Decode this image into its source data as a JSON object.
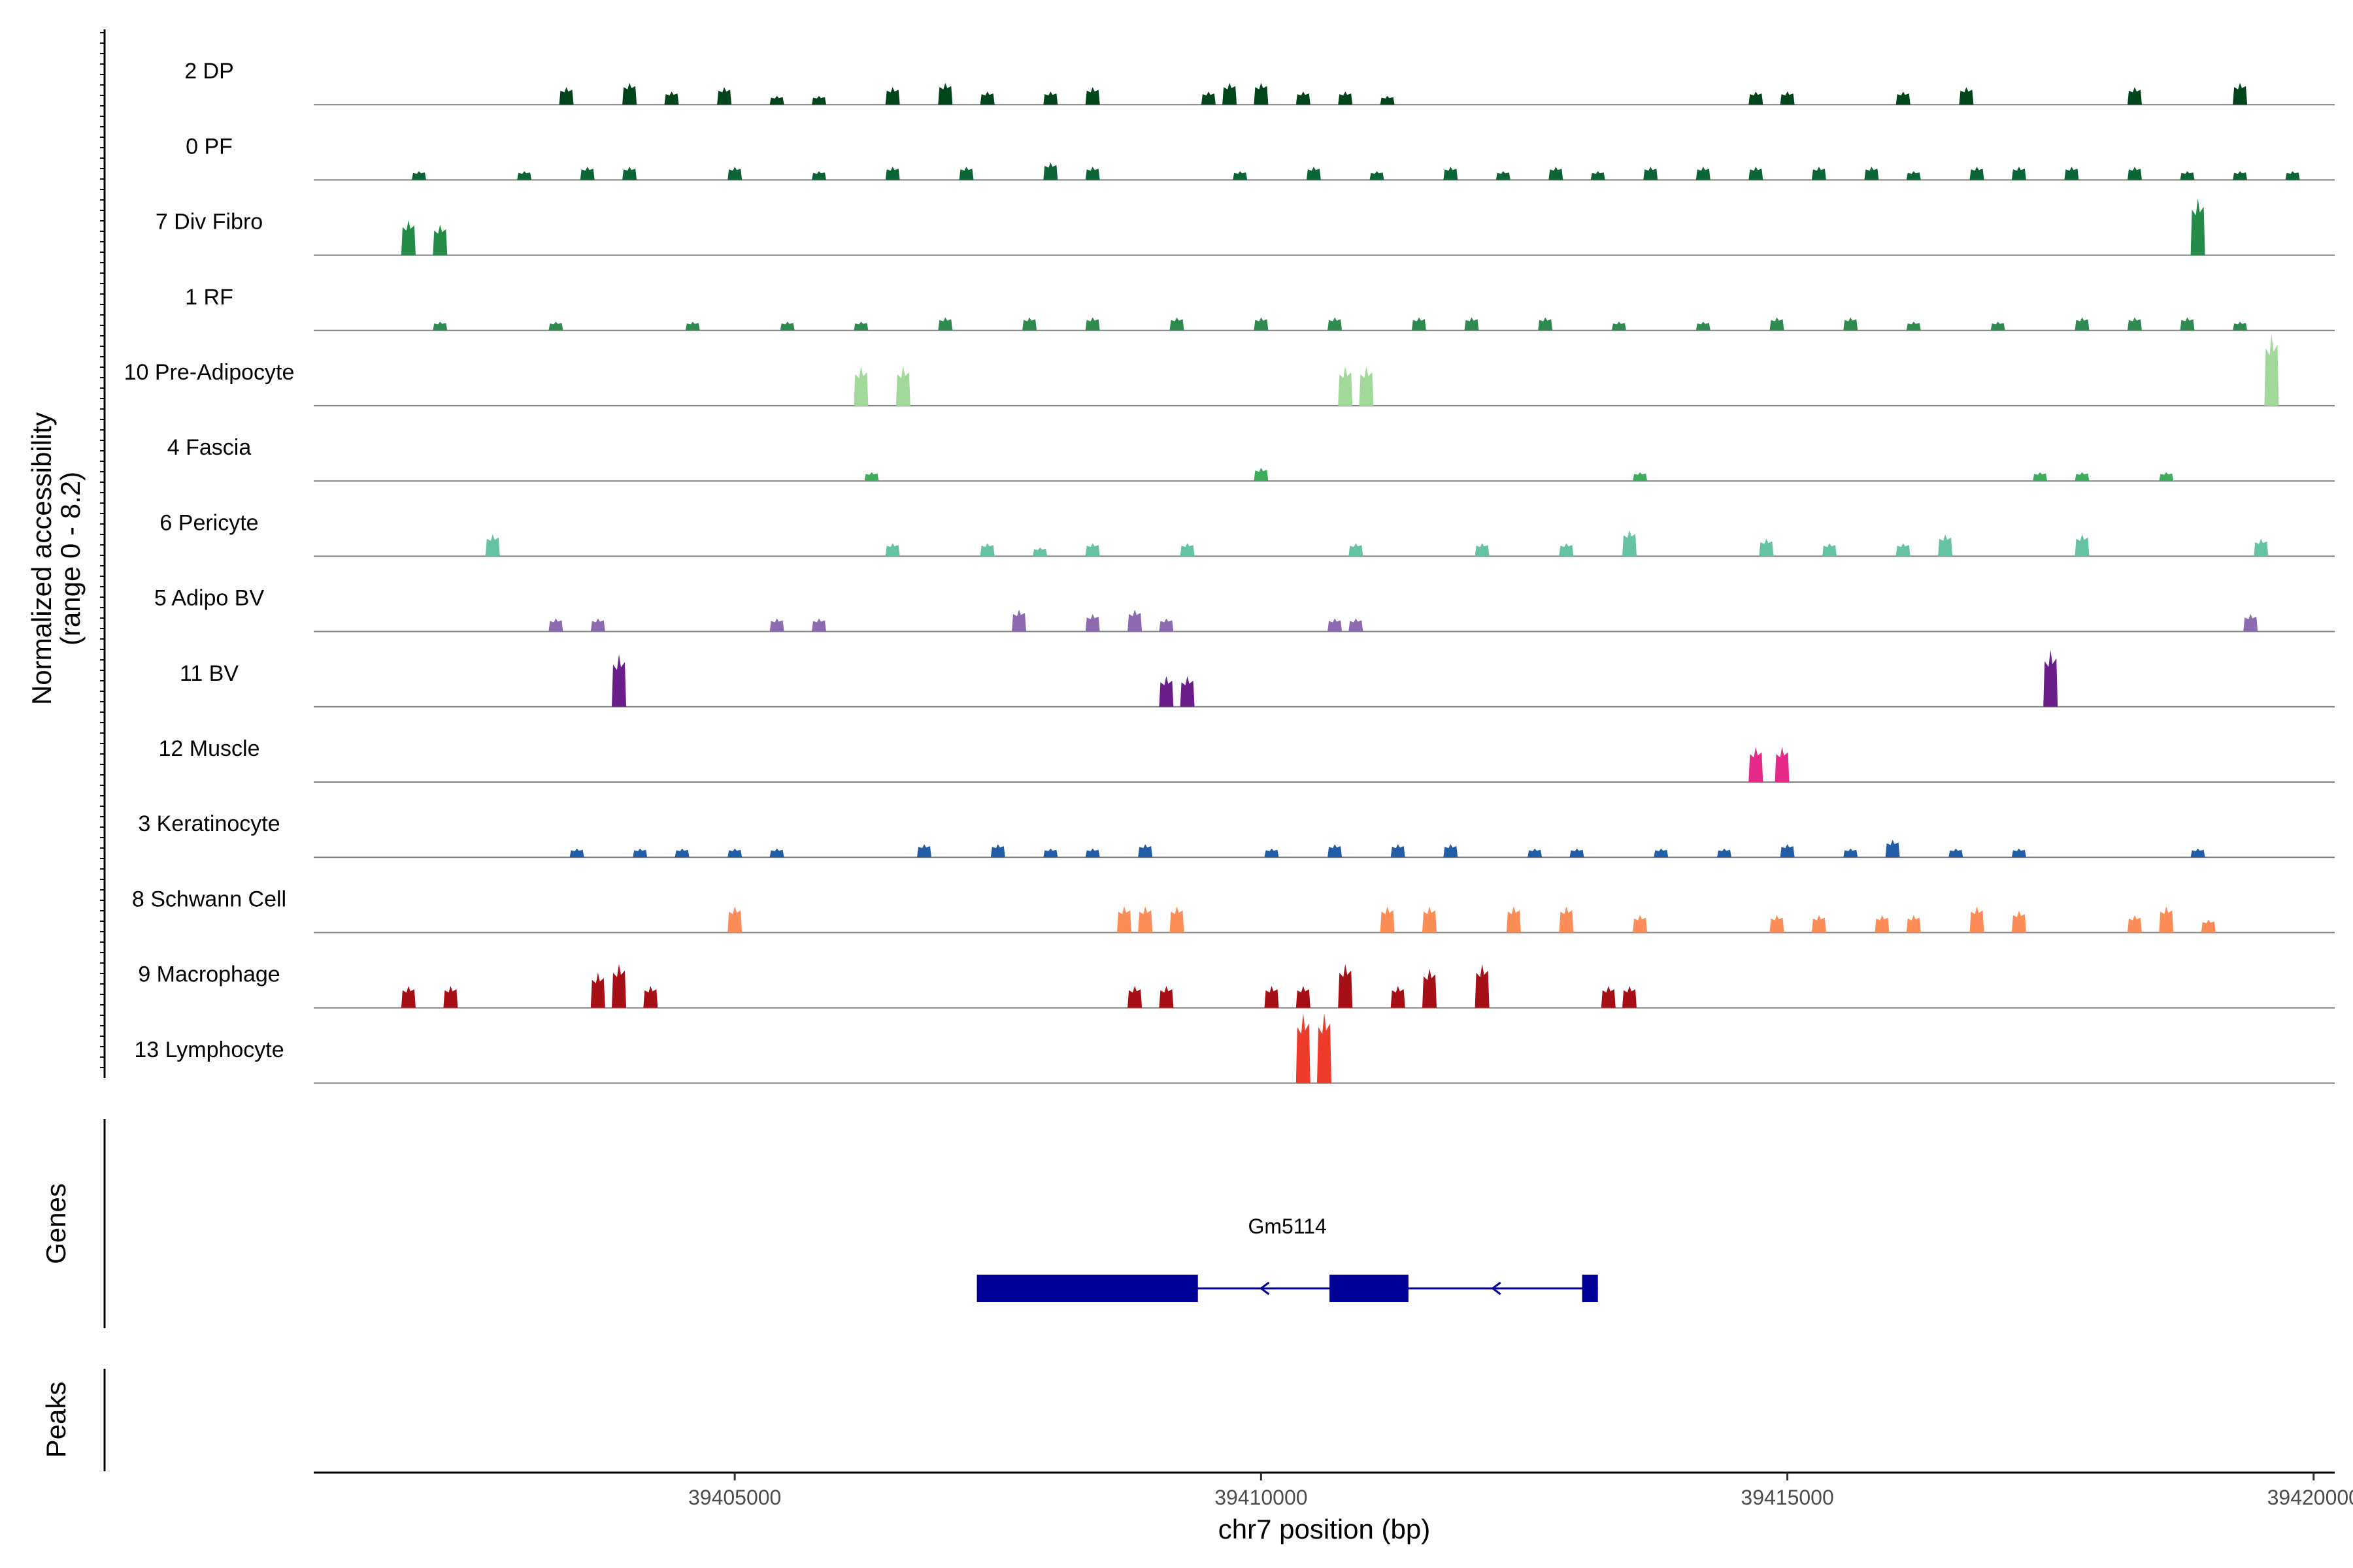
{
  "chart_data": {
    "type": "area",
    "title": "",
    "xlabel": "chr7 position (bp)",
    "ylabel": "Normalized accessibility",
    "ylabel_range": "(range 0 - 8.2)",
    "xlim": [
      39401000,
      39420200
    ],
    "x_ticks": [
      39405000,
      39410000,
      39415000,
      39420000
    ],
    "x_tick_labels": [
      "39405000",
      "39410000",
      "39415000",
      "39420000"
    ],
    "y_range": [
      0,
      8.2
    ],
    "panel_labels": {
      "genes": "Genes",
      "peaks": "Peaks"
    },
    "tracks": [
      {
        "name": "2 DP",
        "color": "#00441b",
        "peaks": [
          [
            39403400,
            2.0
          ],
          [
            39404000,
            2.5
          ],
          [
            39404400,
            1.5
          ],
          [
            39404900,
            2.0
          ],
          [
            39405400,
            1.0
          ],
          [
            39405800,
            1.0
          ],
          [
            39406500,
            2.0
          ],
          [
            39407000,
            2.5
          ],
          [
            39407400,
            1.5
          ],
          [
            39408000,
            1.5
          ],
          [
            39408400,
            2.0
          ],
          [
            39409500,
            1.5
          ],
          [
            39409700,
            2.5
          ],
          [
            39410000,
            2.5
          ],
          [
            39410400,
            1.5
          ],
          [
            39410800,
            1.5
          ],
          [
            39411200,
            1.0
          ],
          [
            39414700,
            1.5
          ],
          [
            39415000,
            1.5
          ],
          [
            39416100,
            1.5
          ],
          [
            39416700,
            2.0
          ],
          [
            39418300,
            2.0
          ],
          [
            39419300,
            2.5
          ]
        ]
      },
      {
        "name": "0 PF",
        "color": "#0b6435",
        "peaks": [
          [
            39402000,
            1.0
          ],
          [
            39403000,
            1.0
          ],
          [
            39403600,
            1.5
          ],
          [
            39404000,
            1.5
          ],
          [
            39405000,
            1.5
          ],
          [
            39405800,
            1.0
          ],
          [
            39406500,
            1.5
          ],
          [
            39407200,
            1.5
          ],
          [
            39408000,
            2.0
          ],
          [
            39408400,
            1.5
          ],
          [
            39409800,
            1.0
          ],
          [
            39410500,
            1.5
          ],
          [
            39411100,
            1.0
          ],
          [
            39411800,
            1.5
          ],
          [
            39412300,
            1.0
          ],
          [
            39412800,
            1.5
          ],
          [
            39413200,
            1.0
          ],
          [
            39413700,
            1.5
          ],
          [
            39414200,
            1.5
          ],
          [
            39414700,
            1.5
          ],
          [
            39415300,
            1.5
          ],
          [
            39415800,
            1.5
          ],
          [
            39416200,
            1.0
          ],
          [
            39416800,
            1.5
          ],
          [
            39417200,
            1.5
          ],
          [
            39417700,
            1.5
          ],
          [
            39418300,
            1.5
          ],
          [
            39418800,
            1.0
          ],
          [
            39419300,
            1.0
          ],
          [
            39419800,
            1.0
          ]
        ]
      },
      {
        "name": "7 Div Fibro",
        "color": "#238b45",
        "peaks": [
          [
            39401900,
            4.0
          ],
          [
            39402200,
            3.5
          ],
          [
            39418900,
            6.5
          ]
        ]
      },
      {
        "name": "1 RF",
        "color": "#2f8a4f",
        "peaks": [
          [
            39402200,
            1.0
          ],
          [
            39403300,
            1.0
          ],
          [
            39404600,
            1.0
          ],
          [
            39405500,
            1.0
          ],
          [
            39406200,
            1.0
          ],
          [
            39407000,
            1.5
          ],
          [
            39407800,
            1.5
          ],
          [
            39408400,
            1.5
          ],
          [
            39409200,
            1.5
          ],
          [
            39410000,
            1.5
          ],
          [
            39410700,
            1.5
          ],
          [
            39411500,
            1.5
          ],
          [
            39412000,
            1.5
          ],
          [
            39412700,
            1.5
          ],
          [
            39413400,
            1.0
          ],
          [
            39414200,
            1.0
          ],
          [
            39414900,
            1.5
          ],
          [
            39415600,
            1.5
          ],
          [
            39416200,
            1.0
          ],
          [
            39417000,
            1.0
          ],
          [
            39417800,
            1.5
          ],
          [
            39418300,
            1.5
          ],
          [
            39418800,
            1.5
          ],
          [
            39419300,
            1.0
          ]
        ]
      },
      {
        "name": "10 Pre-Adipocyte",
        "color": "#a1d99b",
        "peaks": [
          [
            39406200,
            4.5
          ],
          [
            39406600,
            4.5
          ],
          [
            39410800,
            4.5
          ],
          [
            39411000,
            4.5
          ],
          [
            39419600,
            8.2
          ]
        ]
      },
      {
        "name": "4 Fascia",
        "color": "#41ab5d",
        "peaks": [
          [
            39406300,
            1.0
          ],
          [
            39410000,
            1.5
          ],
          [
            39413600,
            1.0
          ],
          [
            39417400,
            1.0
          ],
          [
            39417800,
            1.0
          ],
          [
            39418600,
            1.0
          ]
        ]
      },
      {
        "name": "6 Pericyte",
        "color": "#66c2a4",
        "peaks": [
          [
            39402700,
            2.5
          ],
          [
            39406500,
            1.5
          ],
          [
            39407400,
            1.5
          ],
          [
            39407900,
            1.0
          ],
          [
            39408400,
            1.5
          ],
          [
            39409300,
            1.5
          ],
          [
            39410900,
            1.5
          ],
          [
            39412100,
            1.5
          ],
          [
            39412900,
            1.5
          ],
          [
            39413500,
            3.0
          ],
          [
            39414800,
            2.0
          ],
          [
            39415400,
            1.5
          ],
          [
            39416100,
            1.5
          ],
          [
            39416500,
            2.5
          ],
          [
            39417800,
            2.5
          ],
          [
            39419500,
            2.0
          ]
        ]
      },
      {
        "name": "5 Adipo BV",
        "color": "#8c6bb1",
        "peaks": [
          [
            39403300,
            1.5
          ],
          [
            39403700,
            1.5
          ],
          [
            39405400,
            1.5
          ],
          [
            39405800,
            1.5
          ],
          [
            39407700,
            2.5
          ],
          [
            39408400,
            2.0
          ],
          [
            39408800,
            2.5
          ],
          [
            39409100,
            1.5
          ],
          [
            39410700,
            1.5
          ],
          [
            39410900,
            1.5
          ],
          [
            39419400,
            2.0
          ]
        ]
      },
      {
        "name": "11 BV",
        "color": "#6a1e8a",
        "peaks": [
          [
            39403900,
            6.0
          ],
          [
            39409100,
            3.5
          ],
          [
            39409300,
            3.5
          ],
          [
            39417500,
            6.5
          ]
        ]
      },
      {
        "name": "12 Muscle",
        "color": "#e7298a",
        "peaks": [
          [
            39414700,
            4.0
          ],
          [
            39414950,
            4.0
          ]
        ]
      },
      {
        "name": "3 Keratinocyte",
        "color": "#225ea8",
        "peaks": [
          [
            39403500,
            1.0
          ],
          [
            39404100,
            1.0
          ],
          [
            39404500,
            1.0
          ],
          [
            39405000,
            1.0
          ],
          [
            39405400,
            1.0
          ],
          [
            39406800,
            1.5
          ],
          [
            39407500,
            1.5
          ],
          [
            39408000,
            1.0
          ],
          [
            39408400,
            1.0
          ],
          [
            39408900,
            1.5
          ],
          [
            39410100,
            1.0
          ],
          [
            39410700,
            1.5
          ],
          [
            39411300,
            1.5
          ],
          [
            39411800,
            1.5
          ],
          [
            39412600,
            1.0
          ],
          [
            39413000,
            1.0
          ],
          [
            39413800,
            1.0
          ],
          [
            39414400,
            1.0
          ],
          [
            39415000,
            1.5
          ],
          [
            39415600,
            1.0
          ],
          [
            39416000,
            2.0
          ],
          [
            39416600,
            1.0
          ],
          [
            39417200,
            1.0
          ],
          [
            39418900,
            1.0
          ]
        ]
      },
      {
        "name": "8 Schwann Cell",
        "color": "#fc8d59",
        "peaks": [
          [
            39405000,
            3.0
          ],
          [
            39408700,
            3.0
          ],
          [
            39408900,
            3.0
          ],
          [
            39409200,
            3.0
          ],
          [
            39411200,
            3.0
          ],
          [
            39411600,
            3.0
          ],
          [
            39412400,
            3.0
          ],
          [
            39412900,
            3.0
          ],
          [
            39413600,
            2.0
          ],
          [
            39414900,
            2.0
          ],
          [
            39415300,
            2.0
          ],
          [
            39415900,
            2.0
          ],
          [
            39416200,
            2.0
          ],
          [
            39416800,
            3.0
          ],
          [
            39417200,
            2.5
          ],
          [
            39418300,
            2.0
          ],
          [
            39418600,
            3.0
          ],
          [
            39419000,
            1.5
          ]
        ]
      },
      {
        "name": "9 Macrophage",
        "color": "#a50f15",
        "peaks": [
          [
            39401900,
            2.5
          ],
          [
            39402300,
            2.5
          ],
          [
            39403700,
            4.0
          ],
          [
            39403900,
            5.0
          ],
          [
            39404200,
            2.5
          ],
          [
            39408800,
            2.5
          ],
          [
            39409100,
            2.5
          ],
          [
            39410100,
            2.5
          ],
          [
            39410400,
            2.5
          ],
          [
            39410800,
            5.0
          ],
          [
            39411300,
            2.5
          ],
          [
            39411600,
            4.5
          ],
          [
            39412100,
            5.0
          ],
          [
            39413300,
            2.5
          ],
          [
            39413500,
            2.5
          ]
        ]
      },
      {
        "name": "13 Lymphocyte",
        "color": "#ef3b2c",
        "peaks": [
          [
            39410400,
            8.0
          ],
          [
            39410600,
            8.0
          ]
        ]
      }
    ],
    "genes": [
      {
        "name": "Gm5114",
        "strand": "-",
        "start": 39407300,
        "end": 39413200,
        "exons": [
          [
            39407300,
            39409400
          ],
          [
            39410650,
            39411400
          ],
          [
            39413050,
            39413200
          ]
        ]
      }
    ],
    "peaks_track": []
  }
}
